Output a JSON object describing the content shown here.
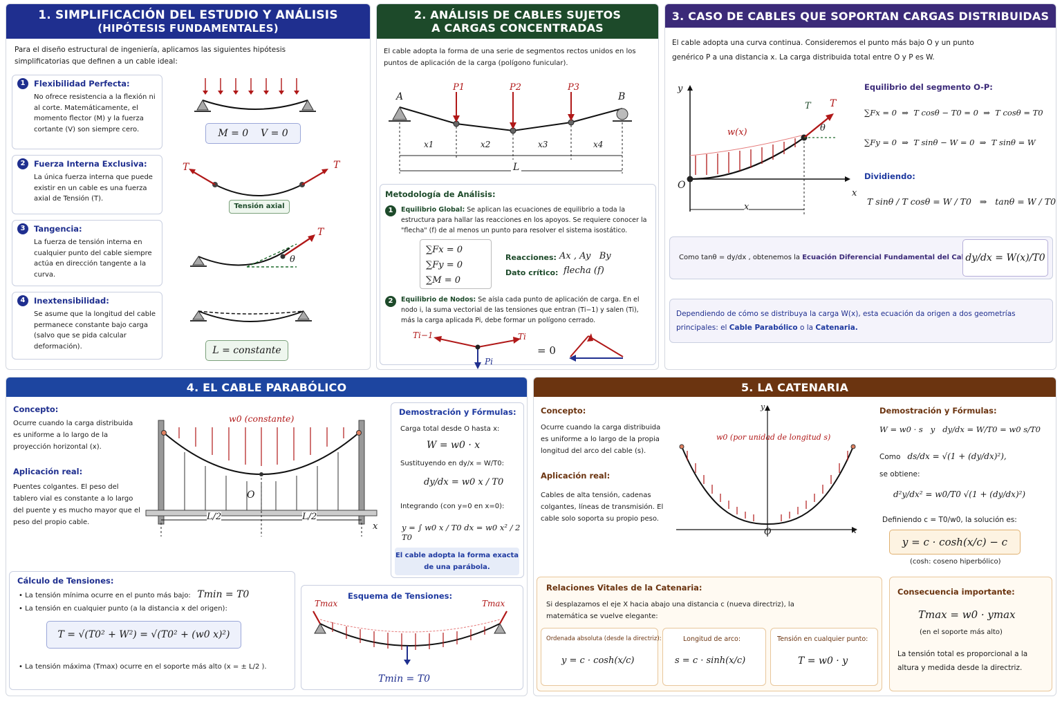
{
  "p1": {
    "title1": "1. SIMPLIFICACIÓN DEL ESTUDIO Y ANÁLISIS",
    "title2": "(HIPÓTESIS FUNDAMENTALES)",
    "intro": "Para el diseño estructural de ingeniería, aplicamos las siguientes hipótesis simplificatorias que definen a un cable ideal:",
    "h1": {
      "n": "1",
      "title": "Flexibilidad Perfecta:",
      "text": "No ofrece resistencia a la flexión ni al corte. Matemáticamente, el momento flector (M) y la fuerza cortante (V) son siempre cero.",
      "eq1": "M = 0",
      "eq2": "V = 0"
    },
    "h2": {
      "n": "2",
      "title": "Fuerza Interna Exclusiva:",
      "text": "La única fuerza interna que puede existir en un cable es una fuerza axial de Tensión (T).",
      "label": "Tensión axial",
      "T": "T"
    },
    "h3": {
      "n": "3",
      "title": "Tangencia:",
      "text": "La fuerza de tensión interna en cualquier punto del cable siempre actúa en dirección tangente a la curva.",
      "T": "T",
      "theta": "θ"
    },
    "h4": {
      "n": "4",
      "title": "Inextensibilidad:",
      "text": "Se asume que la longitud del cable permanece constante bajo carga (salvo que se pida calcular deformación).",
      "eq": "L = constante"
    }
  },
  "p2": {
    "title1": "2. ANÁLISIS DE CABLES SUJETOS",
    "title2": "A CARGAS CONCENTRADAS",
    "intro": "El cable adopta la forma de una serie de segmentos rectos unidos en los puntos de aplicación de la carga (polígono funicular).",
    "labels": {
      "A": "A",
      "B": "B",
      "P1": "P1",
      "P2": "P2",
      "P3": "P3",
      "x1": "x1",
      "x2": "x2",
      "x3": "x3",
      "x4": "x4",
      "L": "L"
    },
    "met": "Metodología de Análisis:",
    "s1": {
      "n": "1",
      "title": "Equilibrio Global:",
      "text": "Se aplican las ecuaciones de equilibrio a toda la estructura para hallar las reacciones en los apoyos. Se requiere conocer la \"flecha\" (f) de al menos un punto para resolver el sistema isostático.",
      "eq1": "∑Fx = 0",
      "eq2": "∑Fy = 0",
      "eq3": "∑M = 0",
      "r1": "Reacciones:",
      "r1v": "Ax , Ay   By",
      "r2": "Dato crítico:",
      "r2v": "flecha (f)"
    },
    "s2": {
      "n": "2",
      "title": "Equilibrio de Nodos:",
      "text": "Se aísla cada punto de aplicación de carga. En el nodo i, la suma vectorial de las tensiones que entran (Ti−1) y salen (Ti), más la carga aplicada Pi, debe formar un polígono cerrado.",
      "Tim1": "Ti−1",
      "Ti": "Ti",
      "Pi": "Pi",
      "eq": "= 0"
    }
  },
  "p3": {
    "title": "3. CASO DE CABLES QUE SOPORTAN CARGAS DISTRIBUIDAS",
    "intro": "El cable adopta una curva continua. Consideremos el punto más bajo O y un punto genérico P a una distancia x. La carga distribuida total entre O y P es W.",
    "labels": {
      "y": "y",
      "x": "x",
      "O": "O",
      "T": "T",
      "P": "T",
      "theta": "θ",
      "w": "w(x)",
      "xdim": "x"
    },
    "eqh": "Equilibrio del segmento O-P:",
    "eq1": "∑Fx = 0  ⇒  T cosθ − T0 = 0  ⇒  T cosθ = T0",
    "eq2": "∑Fy = 0  ⇒  T sinθ − W = 0  ⇒  T sinθ = W",
    "div": "Dividiendo:",
    "eq3": "T sinθ / T cosθ = W / T0   ⇒   tanθ = W / T0",
    "bar1a": "Como tanθ = dy/dx , obtenemos la",
    "bar1b": "Ecuación Diferencial Fundamental del Cable:",
    "bar1eq": "dy/dx = W(x)/T0",
    "bar2a": "Dependiendo de cómo se distribuya la carga W(x), esta ecuación da origen a dos geometrías principales: el",
    "bar2b": "Cable Parabólico",
    "bar2c": "o la",
    "bar2d": "Catenaria."
  },
  "p4": {
    "title": "4. EL CABLE PARABÓLICO",
    "c1": "Concepto:",
    "c1t": "Ocurre cuando la carga distribuida es uniforme a lo largo de la proyección horizontal (x).",
    "c2": "Aplicación real:",
    "c2t": "Puentes colgantes. El peso del tablero vial es constante a lo largo del puente y es mucho mayor que el peso del propio cable.",
    "labels": {
      "w0": "w0 (constante)",
      "O": "O",
      "L2a": "L/2",
      "L2b": "L/2",
      "x": "x"
    },
    "dem": "Demostración y Fórmulas:",
    "d1": "Carga total desde O hasta x:",
    "d1e": "W = w0 · x",
    "d2": "Sustituyendo en dy/x = W/T0:",
    "d2e": "dy/dx = w0 x / T0",
    "d3": "Integrando (con y=0 en x=0):",
    "d3e": "y = ∫ w0 x / T0 dx = w0 x² / 2 T0",
    "d4": "El cable adopta la forma exacta de una parábola.",
    "t": "Cálculo de Tensiones:",
    "t1": "La tensión mínima ocurre en el punto más bajo:",
    "t1e": "Tmin = T0",
    "t2": "La tensión en cualquier punto (a la distancia x del origen):",
    "t2e": "T = √(T0² + W²) = √(T0² + (w0 x)²)",
    "t3": "La tensión máxima (Tmax) ocurre en el soporte más alto (x = ± L/2 ).",
    "esq": "Esquema de Tensiones:",
    "tmaxL": "Tmax",
    "tmaxR": "Tmax",
    "tmin": "Tmin = T0"
  },
  "p5": {
    "title": "5. LA CATENARIA",
    "c1": "Concepto:",
    "c1t": "Ocurre cuando la carga distribuida es uniforme a lo largo de la propia longitud del arco del cable (s).",
    "c2": "Aplicación real:",
    "c2t": "Cables de alta tensión, cadenas colgantes, líneas de transmisión. El cable solo soporta su propio peso.",
    "labels": {
      "w0": "w0 (por unidad de longitud s)",
      "O": "O",
      "x": "x",
      "y": "y"
    },
    "dem": "Demostración y Fórmulas:",
    "d1e": "W = w0 · s   y   dy/dx = W/T0 = w0 s/T0",
    "d2": "Como",
    "d2e": "ds/dx = √(1 + (dy/dx)²),",
    "d2b": "se obtiene:",
    "d3e": "d²y/dx² = w0/T0 √(1 + (dy/dx)²)",
    "d4": "Definiendo c = T0/w0, la solución es:",
    "d5e": "y = c · cosh(x/c) − c",
    "d6": "(cosh: coseno hiperbólico)",
    "rel": "Relaciones Vitales de la Catenaria:",
    "relt": "Si desplazamos el eje X hacia abajo una distancia c (nueva directriz), la matemática se vuelve elegante:",
    "r1": "Ordenada absoluta (desde la directriz):",
    "r1e": "y = c · cosh(x/c)",
    "r2": "Longitud de arco:",
    "r2e": "s = c · sinh(x/c)",
    "r3": "Tensión en cualquier punto:",
    "r3e": "T = w0 · y",
    "cons": "Consecuencia importante:",
    "conse": "Tmax = w0 · ymax",
    "consb": "(en el soporte más alto)",
    "const": "La tensión total es proporcional a la altura y medida desde la directriz."
  }
}
